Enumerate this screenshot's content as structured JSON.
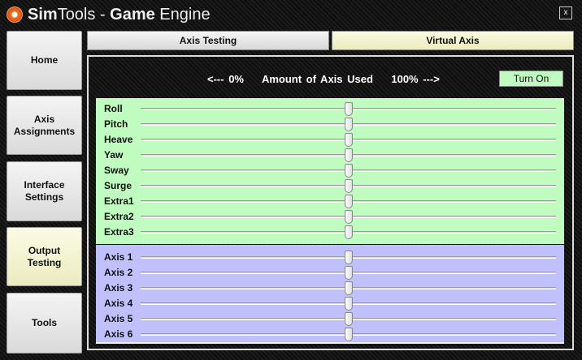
{
  "window": {
    "title_bold": "Sim",
    "title_1": "Tools - ",
    "title_bold2": "Game",
    "title_2": " Engine",
    "close_label": "x"
  },
  "sidebar": {
    "items": [
      {
        "label": "Home"
      },
      {
        "label": "Axis Assignments"
      },
      {
        "label": "Interface Settings"
      },
      {
        "label": "Output Testing",
        "active": true
      },
      {
        "label": "Tools"
      }
    ]
  },
  "tabs": [
    {
      "label": "Axis Testing"
    },
    {
      "label": "Virtual Axis",
      "active": true
    }
  ],
  "header": {
    "text": "<--- 0%    Amount of Axis Used    100% --->",
    "button": "Turn On"
  },
  "colors": {
    "game_axis_panel": "#c0fbc0",
    "output_axis_panel": "#c0c0fc",
    "active_button": "#ecebbf",
    "turn_on": "#c0fac0"
  },
  "game_axes": [
    {
      "label": "Roll",
      "value": 50
    },
    {
      "label": "Pitch",
      "value": 50
    },
    {
      "label": "Heave",
      "value": 50
    },
    {
      "label": "Yaw",
      "value": 50
    },
    {
      "label": "Sway",
      "value": 50
    },
    {
      "label": "Surge",
      "value": 50
    },
    {
      "label": "Extra1",
      "value": 50
    },
    {
      "label": "Extra2",
      "value": 50
    },
    {
      "label": "Extra3",
      "value": 50
    }
  ],
  "output_axes": [
    {
      "label": "Axis 1",
      "value": 50
    },
    {
      "label": "Axis 2",
      "value": 50
    },
    {
      "label": "Axis 3",
      "value": 50
    },
    {
      "label": "Axis 4",
      "value": 50
    },
    {
      "label": "Axis 5",
      "value": 50
    },
    {
      "label": "Axis 6",
      "value": 50
    }
  ]
}
